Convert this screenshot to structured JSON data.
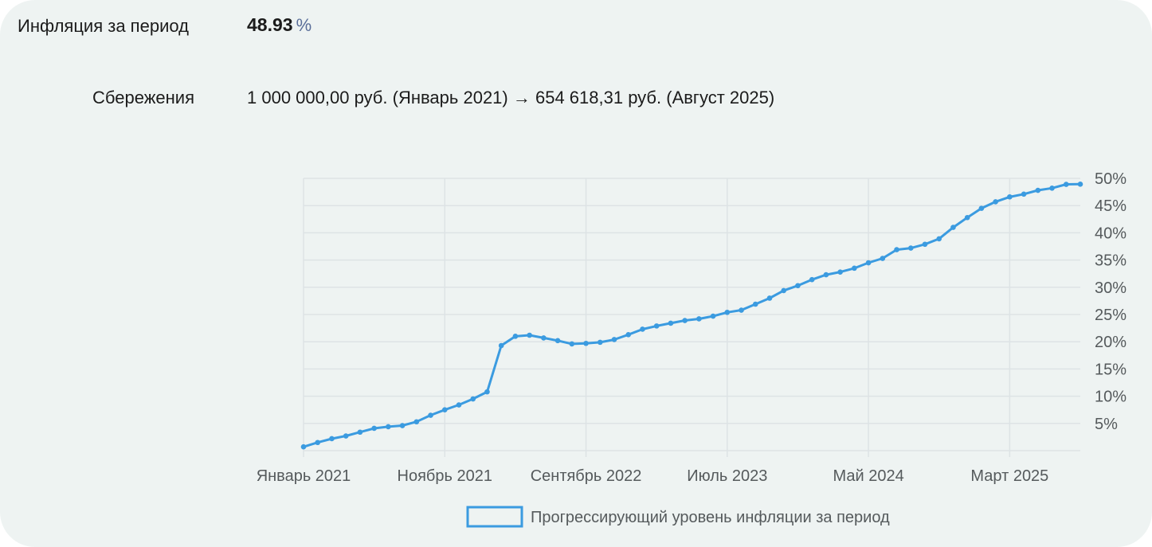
{
  "summary": {
    "inflation_label": "Инфляция за период",
    "inflation_value": "48.93",
    "inflation_unit": "%",
    "savings_label": "Сбережения",
    "savings_text": "1 000 000,00 руб. (Январь 2021) → 654 618,31 руб. (Август 2025)"
  },
  "colors": {
    "line": "#3b9be0",
    "grid": "#dde3e5",
    "panel_bg": "#eef3f2"
  },
  "chart_data": {
    "type": "line",
    "title": "",
    "xlabel": "",
    "ylabel": "",
    "ylim": [
      0,
      50
    ],
    "yticks": [
      "5%",
      "10%",
      "15%",
      "20%",
      "25%",
      "30%",
      "35%",
      "40%",
      "45%",
      "50%"
    ],
    "x_tick_labels": [
      "Январь 2021",
      "Ноябрь 2021",
      "Сентябрь 2022",
      "Июль 2023",
      "Май 2024",
      "Март 2025"
    ],
    "x_tick_months": [
      "2021-01",
      "2021-11",
      "2022-09",
      "2023-07",
      "2024-05",
      "2025-03"
    ],
    "grid": true,
    "legend_position": "bottom-center",
    "series": [
      {
        "name": "Прогрессирующий уровень инфляции за период",
        "x": [
          "2021-01",
          "2021-02",
          "2021-03",
          "2021-04",
          "2021-05",
          "2021-06",
          "2021-07",
          "2021-08",
          "2021-09",
          "2021-10",
          "2021-11",
          "2021-12",
          "2022-01",
          "2022-02",
          "2022-03",
          "2022-04",
          "2022-05",
          "2022-06",
          "2022-07",
          "2022-08",
          "2022-09",
          "2022-10",
          "2022-11",
          "2022-12",
          "2023-01",
          "2023-02",
          "2023-03",
          "2023-04",
          "2023-05",
          "2023-06",
          "2023-07",
          "2023-08",
          "2023-09",
          "2023-10",
          "2023-11",
          "2023-12",
          "2024-01",
          "2024-02",
          "2024-03",
          "2024-04",
          "2024-05",
          "2024-06",
          "2024-07",
          "2024-08",
          "2024-09",
          "2024-10",
          "2024-11",
          "2024-12",
          "2025-01",
          "2025-02",
          "2025-03",
          "2025-04",
          "2025-05",
          "2025-06",
          "2025-07",
          "2025-08"
        ],
        "values": [
          0.7,
          1.5,
          2.2,
          2.7,
          3.4,
          4.1,
          4.4,
          4.6,
          5.3,
          6.5,
          7.5,
          8.4,
          9.5,
          10.8,
          19.3,
          21.0,
          21.2,
          20.7,
          20.2,
          19.6,
          19.7,
          19.9,
          20.4,
          21.3,
          22.3,
          22.9,
          23.4,
          23.9,
          24.2,
          24.7,
          25.4,
          25.8,
          26.9,
          28.0,
          29.4,
          30.3,
          31.4,
          32.3,
          32.8,
          33.5,
          34.5,
          35.3,
          36.9,
          37.2,
          37.9,
          38.9,
          41.0,
          42.8,
          44.5,
          45.7,
          46.6,
          47.1,
          47.8,
          48.2,
          48.9,
          48.93
        ]
      }
    ]
  }
}
